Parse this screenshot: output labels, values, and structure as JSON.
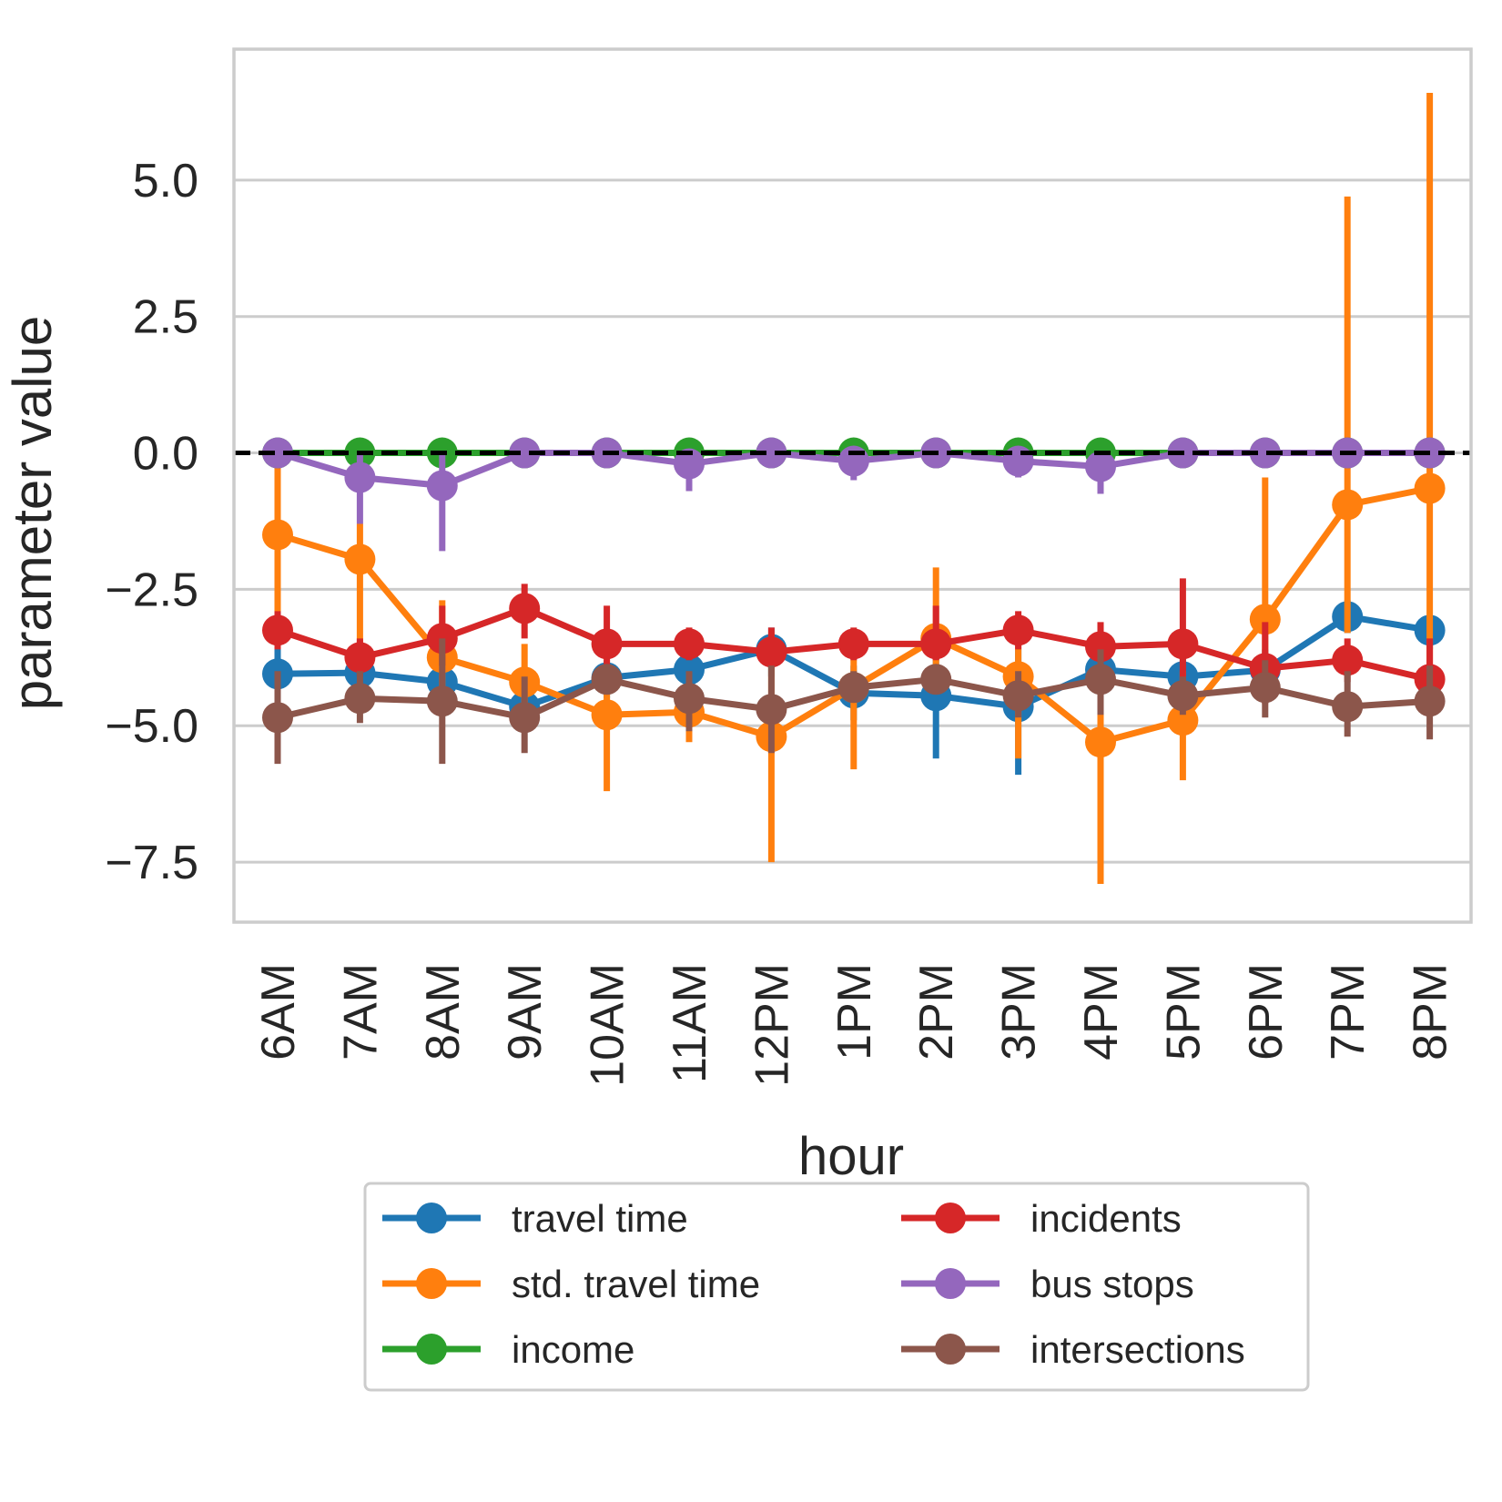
{
  "chart_data": {
    "type": "line",
    "title": "",
    "xlabel": "hour",
    "ylabel": "parameter value",
    "ylim": [
      -8.6,
      7.4
    ],
    "yticks": [
      5.0,
      2.5,
      0.0,
      -2.5,
      -5.0,
      -7.5
    ],
    "ytick_labels": [
      "5.0",
      "2.5",
      "0.0",
      "−2.5",
      "−5.0",
      "−7.5"
    ],
    "grid": true,
    "reference_line": {
      "y": 0.0,
      "style": "dashed",
      "color": "#000000"
    },
    "legend_position": "below",
    "categories": [
      "6AM",
      "7AM",
      "8AM",
      "9AM",
      "10AM",
      "11AM",
      "12PM",
      "1PM",
      "2PM",
      "3PM",
      "4PM",
      "5PM",
      "6PM",
      "7PM",
      "8PM"
    ],
    "series": [
      {
        "name": "travel time",
        "color": "#1f77b4",
        "values": [
          -4.05,
          -4.03,
          -4.2,
          -4.65,
          -4.12,
          -3.97,
          -3.6,
          -4.4,
          -4.45,
          -4.65,
          -3.97,
          -4.1,
          -3.98,
          -3.0,
          -3.25
        ],
        "err_low": [
          -4.6,
          -4.6,
          -4.7,
          -5.1,
          -4.5,
          -4.4,
          -4.1,
          -4.9,
          -5.6,
          -5.9,
          -4.6,
          -4.6,
          -4.3,
          -3.3,
          -3.6
        ],
        "err_high": [
          -3.5,
          -3.5,
          -3.7,
          -4.2,
          -3.8,
          -3.6,
          -3.2,
          -3.9,
          -3.7,
          -3.6,
          -3.4,
          -3.7,
          -3.6,
          -2.7,
          -3.0
        ]
      },
      {
        "name": "std. travel time",
        "color": "#ff7f0e",
        "values": [
          -1.5,
          -1.95,
          -3.75,
          -4.2,
          -4.8,
          -4.75,
          -5.2,
          -4.3,
          -3.4,
          -4.1,
          -5.3,
          -4.9,
          -3.05,
          -0.95,
          -0.65
        ],
        "err_low": [
          -3.2,
          -3.9,
          -4.6,
          -4.9,
          -6.2,
          -5.3,
          -7.5,
          -5.8,
          -4.4,
          -5.6,
          -7.9,
          -6.0,
          -3.9,
          -3.3,
          -3.9
        ],
        "err_high": [
          0.0,
          -1.3,
          -2.7,
          -3.5,
          -3.9,
          -4.2,
          -3.3,
          -3.6,
          -2.1,
          -3.5,
          -4.0,
          -4.0,
          -0.45,
          4.7,
          6.6
        ]
      },
      {
        "name": "income",
        "color": "#2ca02c",
        "values": [
          0.0,
          0.0,
          0.0,
          0.0,
          0.0,
          0.0,
          0.0,
          0.0,
          0.0,
          0.0,
          0.0,
          0.0,
          0.0,
          0.0,
          0.0
        ],
        "err_low": [
          -0.05,
          -0.05,
          -0.05,
          -0.05,
          -0.05,
          -0.05,
          -0.05,
          -0.05,
          -0.05,
          -0.05,
          -0.05,
          -0.05,
          -0.05,
          -0.05,
          -0.05
        ],
        "err_high": [
          0.05,
          0.05,
          0.05,
          0.05,
          0.05,
          0.05,
          0.05,
          0.05,
          0.05,
          0.05,
          0.05,
          0.05,
          0.05,
          0.05,
          0.05
        ]
      },
      {
        "name": "incidents",
        "color": "#d62728",
        "values": [
          -3.25,
          -3.75,
          -3.4,
          -2.85,
          -3.5,
          -3.5,
          -3.65,
          -3.5,
          -3.5,
          -3.25,
          -3.55,
          -3.5,
          -3.95,
          -3.8,
          -4.15
        ],
        "err_low": [
          -3.6,
          -4.1,
          -3.9,
          -3.4,
          -3.9,
          -3.8,
          -3.9,
          -3.8,
          -3.8,
          -3.6,
          -4.0,
          -4.5,
          -4.6,
          -4.2,
          -4.6
        ],
        "err_high": [
          -2.9,
          -3.4,
          -2.8,
          -2.4,
          -2.8,
          -3.2,
          -3.2,
          -3.2,
          -2.8,
          -2.9,
          -3.1,
          -2.3,
          -3.1,
          -3.4,
          -3.4
        ]
      },
      {
        "name": "bus stops",
        "color": "#9467bd",
        "values": [
          0.0,
          -0.45,
          -0.6,
          0.0,
          0.0,
          -0.2,
          0.0,
          -0.15,
          0.0,
          -0.15,
          -0.25,
          0.0,
          0.0,
          0.0,
          0.0
        ],
        "err_low": [
          -0.1,
          -1.3,
          -1.8,
          -0.1,
          -0.1,
          -0.7,
          -0.1,
          -0.5,
          -0.1,
          -0.45,
          -0.75,
          -0.1,
          -0.1,
          -0.1,
          -0.1
        ],
        "err_high": [
          0.1,
          0.0,
          0.0,
          0.1,
          0.1,
          0.0,
          0.1,
          0.0,
          0.1,
          0.0,
          0.0,
          0.1,
          0.1,
          0.1,
          0.1
        ]
      },
      {
        "name": "intersections",
        "color": "#8c564b",
        "values": [
          -4.85,
          -4.5,
          -4.55,
          -4.85,
          -4.15,
          -4.5,
          -4.7,
          -4.3,
          -4.15,
          -4.45,
          -4.15,
          -4.45,
          -4.3,
          -4.65,
          -4.55
        ],
        "err_low": [
          -5.7,
          -4.95,
          -5.7,
          -5.5,
          -4.4,
          -5.1,
          -5.5,
          -4.5,
          -4.4,
          -4.85,
          -4.8,
          -4.8,
          -4.85,
          -5.2,
          -5.25
        ],
        "err_high": [
          -4.0,
          -4.0,
          -3.4,
          -4.1,
          -3.9,
          -4.0,
          -3.9,
          -4.0,
          -3.9,
          -4.0,
          -3.6,
          -4.1,
          -3.8,
          -4.0,
          -3.9
        ]
      }
    ]
  }
}
